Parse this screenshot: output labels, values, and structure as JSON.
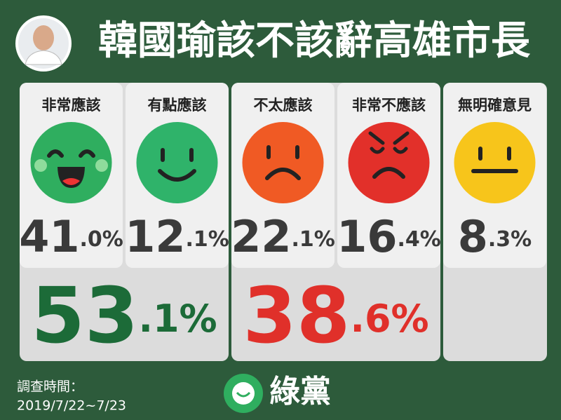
{
  "header": {
    "title": "韓國瑜該不該辭高雄市長"
  },
  "options": [
    {
      "label": "非常應該",
      "value": "41.0%"
    },
    {
      "label": "有點應該",
      "value": "12.1%"
    },
    {
      "label": "不太應該",
      "value": "22.1%"
    },
    {
      "label": "非常不應該",
      "value": "16.4%"
    },
    {
      "label": "無明確意見",
      "value": "8.3%"
    }
  ],
  "groups": [
    {
      "value": "53.1%"
    },
    {
      "value": "38.6%"
    }
  ],
  "footer": {
    "survey_label": "調查時間：",
    "survey_date": "2019/7/22~7/23",
    "logo": "綠黨"
  }
}
